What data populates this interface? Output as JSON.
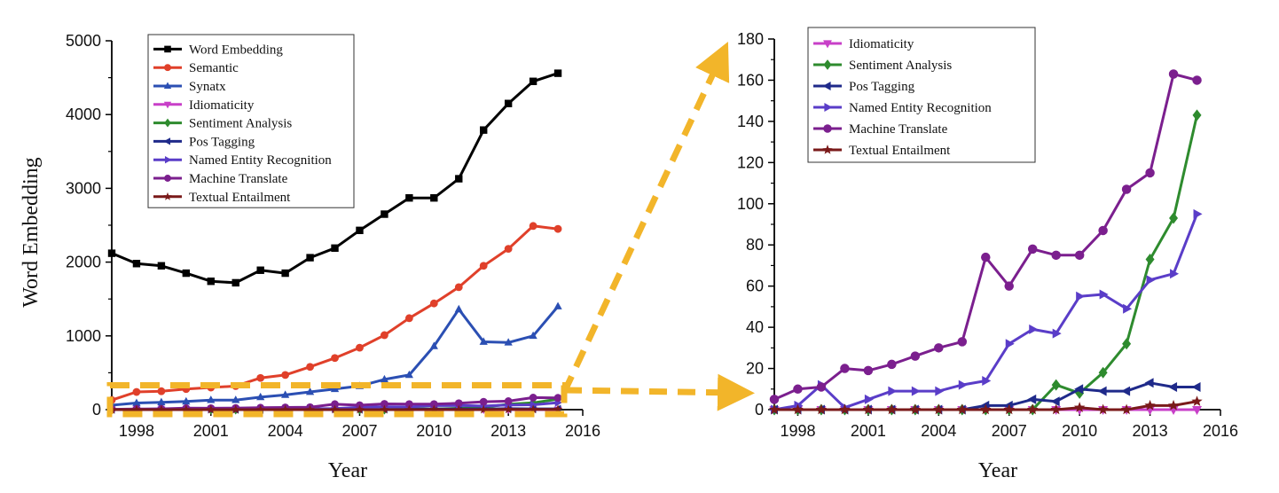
{
  "highlight_color": "#f2b52a",
  "chart_data": [
    {
      "type": "line",
      "xlabel": "Year",
      "ylabel": "Word Embedding",
      "xlim": [
        1997,
        2016
      ],
      "ylim": [
        0,
        5000
      ],
      "xticks": [
        "1998",
        "2001",
        "2004",
        "2007",
        "2010",
        "2013",
        "2016"
      ],
      "yticks": [
        "0",
        "1000",
        "2000",
        "3000",
        "4000",
        "5000"
      ],
      "grid": false,
      "legend_position": "top-left",
      "x": [
        1997,
        1998,
        1999,
        2000,
        2001,
        2002,
        2003,
        2004,
        2005,
        2006,
        2007,
        2008,
        2009,
        2010,
        2011,
        2012,
        2013,
        2014,
        2015
      ],
      "series": [
        {
          "name": "Word Embedding",
          "color": "#000000",
          "marker": "square",
          "values": [
            2120,
            1980,
            1950,
            1850,
            1740,
            1720,
            1890,
            1850,
            2060,
            2190,
            2430,
            2650,
            2870,
            2870,
            3130,
            3790,
            4150,
            4450,
            4560
          ]
        },
        {
          "name": "Semantic",
          "color": "#e0402a",
          "marker": "circle",
          "values": [
            130,
            240,
            250,
            280,
            300,
            320,
            430,
            470,
            580,
            700,
            840,
            1010,
            1240,
            1440,
            1660,
            1950,
            2180,
            2490,
            2450
          ]
        },
        {
          "name": "Synatx",
          "color": "#2b4fb3",
          "marker": "triangle-up",
          "values": [
            60,
            90,
            100,
            110,
            130,
            130,
            170,
            200,
            240,
            280,
            320,
            410,
            470,
            860,
            1360,
            920,
            910,
            1000,
            1400
          ]
        },
        {
          "name": "Idiomaticity",
          "color": "#c83fc8",
          "marker": "triangle-down",
          "values": [
            0,
            0,
            0,
            0,
            0,
            0,
            0,
            0,
            0,
            0,
            0,
            0,
            0,
            0,
            0,
            0,
            0,
            0,
            0
          ]
        },
        {
          "name": "Sentiment Analysis",
          "color": "#2e8b2e",
          "marker": "diamond",
          "values": [
            0,
            0,
            0,
            0,
            0,
            0,
            0,
            0,
            0,
            0,
            0,
            0,
            12,
            8,
            18,
            32,
            73,
            93,
            143
          ]
        },
        {
          "name": "Pos Tagging",
          "color": "#1f2a8a",
          "marker": "triangle-left",
          "values": [
            0,
            0,
            0,
            0,
            0,
            0,
            0,
            0,
            0,
            2,
            2,
            5,
            4,
            10,
            9,
            9,
            13,
            11,
            11
          ]
        },
        {
          "name": "Named Entity Recognition",
          "color": "#5a3dc8",
          "marker": "triangle-right",
          "values": [
            0,
            2,
            12,
            1,
            5,
            9,
            9,
            9,
            12,
            14,
            32,
            39,
            37,
            55,
            56,
            49,
            63,
            66,
            95
          ]
        },
        {
          "name": "Machine Translate",
          "color": "#7b1f8e",
          "marker": "circle",
          "values": [
            5,
            10,
            11,
            20,
            19,
            22,
            26,
            30,
            33,
            74,
            60,
            78,
            75,
            75,
            87,
            107,
            115,
            163,
            160
          ]
        },
        {
          "name": "Textual Entailment",
          "color": "#7a1a1a",
          "marker": "star",
          "values": [
            0,
            0,
            0,
            0,
            0,
            0,
            0,
            0,
            0,
            0,
            0,
            0,
            0,
            1,
            0,
            0,
            2,
            2,
            4
          ]
        }
      ]
    },
    {
      "type": "line",
      "xlabel": "Year",
      "ylabel": "",
      "xlim": [
        1997,
        2016
      ],
      "ylim": [
        0,
        180
      ],
      "xticks": [
        "1998",
        "2001",
        "2004",
        "2007",
        "2010",
        "2013",
        "2016"
      ],
      "yticks": [
        "0",
        "20",
        "40",
        "60",
        "80",
        "100",
        "120",
        "140",
        "160",
        "180"
      ],
      "grid": false,
      "legend_position": "top-left",
      "x": [
        1997,
        1998,
        1999,
        2000,
        2001,
        2002,
        2003,
        2004,
        2005,
        2006,
        2007,
        2008,
        2009,
        2010,
        2011,
        2012,
        2013,
        2014,
        2015
      ],
      "series": [
        {
          "name": "Idiomaticity",
          "color": "#c83fc8",
          "marker": "triangle-down",
          "values": [
            0,
            0,
            0,
            0,
            0,
            0,
            0,
            0,
            0,
            0,
            0,
            0,
            0,
            0,
            0,
            0,
            0,
            0,
            0
          ]
        },
        {
          "name": "Sentiment Analysis",
          "color": "#2e8b2e",
          "marker": "diamond",
          "values": [
            0,
            0,
            0,
            0,
            0,
            0,
            0,
            0,
            0,
            0,
            0,
            0,
            12,
            8,
            18,
            32,
            73,
            93,
            143
          ]
        },
        {
          "name": "Pos Tagging",
          "color": "#1f2a8a",
          "marker": "triangle-left",
          "values": [
            0,
            0,
            0,
            0,
            0,
            0,
            0,
            0,
            0,
            2,
            2,
            5,
            4,
            10,
            9,
            9,
            13,
            11,
            11
          ]
        },
        {
          "name": "Named Entity Recognition",
          "color": "#5a3dc8",
          "marker": "triangle-right",
          "values": [
            0,
            2,
            12,
            1,
            5,
            9,
            9,
            9,
            12,
            14,
            32,
            39,
            37,
            55,
            56,
            49,
            63,
            66,
            95
          ]
        },
        {
          "name": "Machine Translate",
          "color": "#7b1f8e",
          "marker": "circle",
          "values": [
            5,
            10,
            11,
            20,
            19,
            22,
            26,
            30,
            33,
            74,
            60,
            78,
            75,
            75,
            87,
            107,
            115,
            163,
            160
          ]
        },
        {
          "name": "Textual Entailment",
          "color": "#7a1a1a",
          "marker": "star",
          "values": [
            0,
            0,
            0,
            0,
            0,
            0,
            0,
            0,
            0,
            0,
            0,
            0,
            0,
            1,
            0,
            0,
            2,
            2,
            4
          ]
        }
      ]
    }
  ]
}
